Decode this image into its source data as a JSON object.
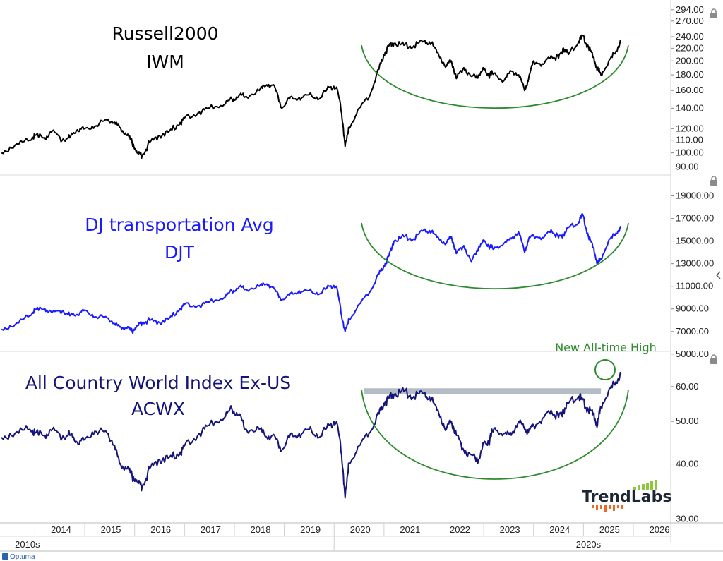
{
  "colors": {
    "iwm": "#000000",
    "djt": "#1a1aff",
    "acwx": "#14147a",
    "arc": "#2e8b2e",
    "band": "#b4bcc6",
    "annotation": "#2e8b2e"
  },
  "footer": {
    "provider": "Optuma"
  },
  "brand": {
    "name": "TrendLabs"
  },
  "chart_data": {
    "type": "line",
    "x_axis": {
      "years": [
        "2014",
        "2015",
        "2016",
        "2017",
        "2018",
        "2019",
        "2020",
        "2021",
        "2022",
        "2023",
        "2024",
        "2025",
        "2026"
      ],
      "decades": [
        "2010s",
        "2020s"
      ],
      "range": [
        2013.3,
        2026.75
      ]
    },
    "panels": [
      {
        "id": "iwm",
        "title_line1": "Russell2000",
        "title_line2": "IWM",
        "y_scale": "log",
        "y_ticks": [
          "294.00",
          "270.00",
          "240.00",
          "220.00",
          "200.00",
          "180.00",
          "160.00",
          "140.00",
          "120.00",
          "110.00",
          "100.00",
          "90.00"
        ],
        "ylim": [
          86,
          300
        ],
        "series": [
          {
            "x": [
              2013.33,
              2013.6,
              2013.9,
              2014.0,
              2014.2,
              2014.35,
              2014.55,
              2014.7,
              2014.85,
              2015.0,
              2015.2,
              2015.45,
              2015.6,
              2015.7,
              2015.85,
              2015.95,
              2016.05,
              2016.15,
              2016.3,
              2016.5,
              2016.7,
              2016.9,
              2017.0,
              2017.3,
              2017.5,
              2017.8,
              2017.95,
              2018.1,
              2018.2,
              2018.5,
              2018.65,
              2018.8,
              2018.95,
              2019.1,
              2019.3,
              2019.5,
              2019.7,
              2019.9,
              2020.05,
              2020.15,
              2020.22,
              2020.3,
              2020.5,
              2020.7,
              2020.9,
              2021.0,
              2021.1,
              2021.2,
              2021.4,
              2021.6,
              2021.8,
              2021.95,
              2022.1,
              2022.25,
              2022.35,
              2022.45,
              2022.6,
              2022.75,
              2022.9,
              2023.0,
              2023.1,
              2023.2,
              2023.4,
              2023.55,
              2023.7,
              2023.82,
              2023.9,
              2024.0,
              2024.2,
              2024.35,
              2024.5,
              2024.6,
              2024.7,
              2024.9,
              2024.98,
              2025.1,
              2025.2,
              2025.28,
              2025.35,
              2025.5,
              2025.65,
              2025.75
            ],
            "values": [
              100,
              106,
              110,
              114,
              112,
              118,
              110,
              112,
              119,
              120,
              122,
              128,
              126,
              121,
              114,
              108,
              100,
              98,
              108,
              114,
              118,
              124,
              130,
              136,
              140,
              144,
              150,
              155,
              152,
              160,
              167,
              166,
              140,
              150,
              152,
              155,
              150,
              164,
              164,
              135,
              105,
              120,
              140,
              152,
              188,
              210,
              224,
              228,
              225,
              224,
              232,
              228,
              208,
              192,
              200,
              175,
              190,
              178,
              180,
              188,
              180,
              182,
              172,
              185,
              180,
              160,
              175,
              200,
              195,
              208,
              204,
              220,
              210,
              230,
              242,
              222,
              205,
              188,
              180,
              198,
              215,
              232
            ]
          }
        ],
        "arc_note": "",
        "band_level": null
      },
      {
        "id": "djt",
        "title_line1": "DJ transportation Avg",
        "title_line2": "DJT",
        "y_scale": "linear",
        "y_ticks": [
          "19000.00",
          "17000.00",
          "15000.00",
          "13000.00",
          "11000.00",
          "9000.00",
          "7000.00",
          "5000.00"
        ],
        "ylim": [
          4800,
          19600
        ],
        "series": [
          {
            "x": [
              2013.33,
              2013.6,
              2013.9,
              2014.0,
              2014.2,
              2014.35,
              2014.55,
              2014.7,
              2014.85,
              2015.0,
              2015.2,
              2015.45,
              2015.6,
              2015.7,
              2015.85,
              2015.95,
              2016.05,
              2016.15,
              2016.3,
              2016.5,
              2016.7,
              2016.9,
              2017.0,
              2017.3,
              2017.5,
              2017.8,
              2017.95,
              2018.1,
              2018.2,
              2018.5,
              2018.65,
              2018.8,
              2018.95,
              2019.1,
              2019.3,
              2019.5,
              2019.7,
              2019.9,
              2020.05,
              2020.15,
              2020.22,
              2020.3,
              2020.5,
              2020.7,
              2020.9,
              2021.0,
              2021.1,
              2021.2,
              2021.4,
              2021.6,
              2021.8,
              2021.95,
              2022.1,
              2022.25,
              2022.35,
              2022.45,
              2022.6,
              2022.75,
              2022.9,
              2023.0,
              2023.1,
              2023.2,
              2023.4,
              2023.55,
              2023.7,
              2023.82,
              2023.9,
              2024.0,
              2024.2,
              2024.35,
              2024.5,
              2024.6,
              2024.7,
              2024.9,
              2024.98,
              2025.1,
              2025.2,
              2025.28,
              2025.35,
              2025.5,
              2025.65,
              2025.75
            ],
            "values": [
              7200,
              7600,
              8400,
              8900,
              9000,
              8700,
              8800,
              8400,
              8500,
              8900,
              8300,
              8200,
              7700,
              7400,
              7300,
              7000,
              7500,
              7800,
              8000,
              7800,
              8200,
              8900,
              9400,
              9300,
              9600,
              10000,
              10600,
              11000,
              10700,
              11000,
              11200,
              10800,
              9800,
              10200,
              10600,
              10600,
              10300,
              11000,
              11000,
              8400,
              7000,
              8000,
              9400,
              10400,
              12100,
              12800,
              13700,
              15000,
              15400,
              15200,
              16000,
              15800,
              15200,
              14800,
              15400,
              13900,
              14600,
              13200,
              14500,
              15000,
              14600,
              14300,
              14800,
              15200,
              15800,
              14000,
              15200,
              15500,
              15300,
              16000,
              15300,
              15600,
              16200,
              16600,
              17400,
              15400,
              14400,
              13000,
              13400,
              15000,
              15700,
              16200
            ]
          }
        ],
        "arc_note": "",
        "band_level": null
      },
      {
        "id": "acwx",
        "title_line1": "All Country World Index Ex-US",
        "title_line2": "ACWX",
        "y_scale": "log",
        "y_ticks": [
          "60.00",
          "50.00",
          "40.00",
          "30.00"
        ],
        "ylim": [
          29.5,
          67
        ],
        "series": [
          {
            "x": [
              2013.33,
              2013.6,
              2013.9,
              2014.0,
              2014.2,
              2014.35,
              2014.55,
              2014.7,
              2014.85,
              2015.0,
              2015.2,
              2015.45,
              2015.6,
              2015.7,
              2015.85,
              2015.95,
              2016.05,
              2016.15,
              2016.3,
              2016.5,
              2016.7,
              2016.9,
              2017.0,
              2017.3,
              2017.5,
              2017.8,
              2017.95,
              2018.1,
              2018.2,
              2018.5,
              2018.65,
              2018.8,
              2018.95,
              2019.1,
              2019.3,
              2019.5,
              2019.7,
              2019.9,
              2020.05,
              2020.15,
              2020.22,
              2020.3,
              2020.5,
              2020.7,
              2020.9,
              2021.0,
              2021.1,
              2021.2,
              2021.4,
              2021.6,
              2021.8,
              2021.95,
              2022.1,
              2022.25,
              2022.35,
              2022.45,
              2022.6,
              2022.75,
              2022.9,
              2023.0,
              2023.1,
              2023.2,
              2023.4,
              2023.55,
              2023.7,
              2023.82,
              2023.9,
              2024.0,
              2024.2,
              2024.35,
              2024.5,
              2024.6,
              2024.7,
              2024.9,
              2024.98,
              2025.1,
              2025.2,
              2025.28,
              2025.35,
              2025.5,
              2025.65,
              2025.75
            ],
            "values": [
              46,
              47,
              48,
              47,
              46.5,
              48,
              46,
              46.5,
              44.8,
              45.5,
              47.5,
              47,
              44,
              40,
              39,
              37.5,
              36.5,
              35.5,
              39,
              41,
              41.5,
              42,
              44,
              47,
              49,
              51,
              53.5,
              52,
              48,
              48,
              46,
              46.5,
              43,
              46,
              47,
              48,
              46,
              49,
              50,
              42,
              33.5,
              40,
              44,
              47,
              52,
              55,
              56.5,
              57.5,
              58.5,
              57,
              58,
              56,
              52,
              48,
              50,
              46.5,
              43,
              42,
              41,
              44.5,
              45,
              48,
              47,
              46.5,
              50,
              48,
              47.5,
              49,
              51,
              53,
              51,
              53,
              55,
              57,
              56,
              53,
              52,
              49,
              54,
              58.5,
              61.5,
              64
            ]
          }
        ],
        "arc_note": "New All-time High",
        "band_level": 58.6
      }
    ]
  }
}
